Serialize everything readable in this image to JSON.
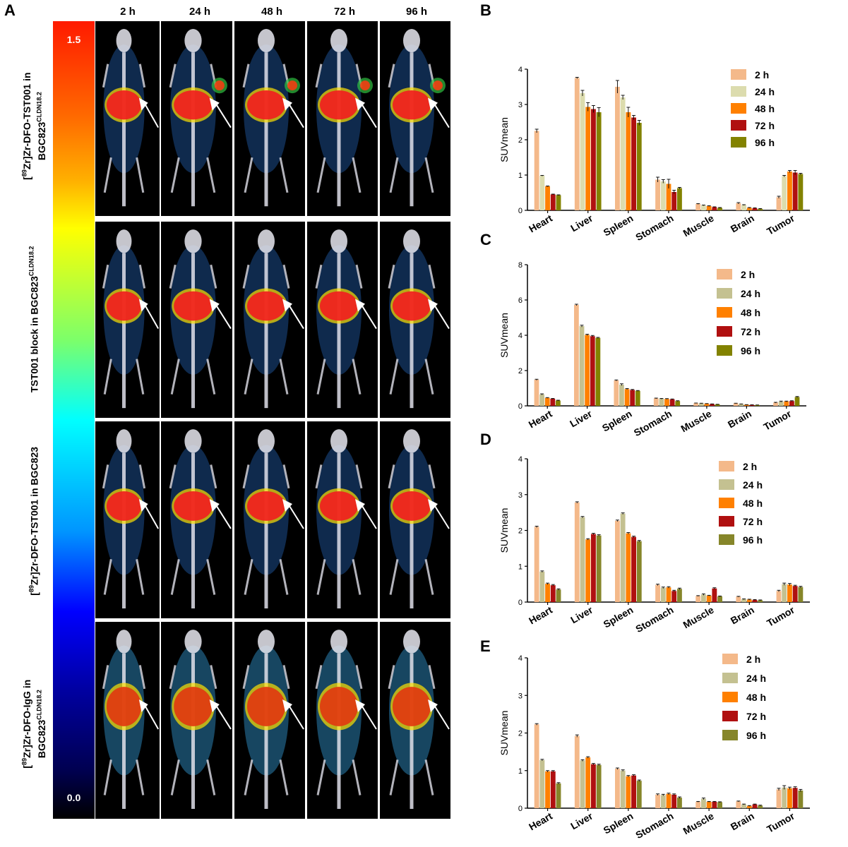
{
  "panels": {
    "a": "A",
    "b": "B",
    "c": "C",
    "d": "D",
    "e": "E"
  },
  "time_points": [
    "2 h",
    "24 h",
    "48 h",
    "72 h",
    "96 h"
  ],
  "colorbar": {
    "max": "1.5",
    "min": "0.0"
  },
  "row_labels": [
    {
      "pre": "[",
      "sup": "89",
      "main": "Zr]Zr-DFO-TST001 in",
      "line2": "BGC823",
      "sup2": "CLDN18.2"
    },
    {
      "pre": "",
      "sup": "",
      "main": "TST001 block in BGC823",
      "line2": "",
      "sup2": "CLDN18.2"
    },
    {
      "pre": "[",
      "sup": "89",
      "main": "Zr]Zr-DFO-TST001 in BGC823",
      "line2": "",
      "sup2": ""
    },
    {
      "pre": "[",
      "sup": "89",
      "main": "Zr]Zr-DFO-IgG in",
      "line2": "BGC823",
      "sup2": "CLDN18.2"
    }
  ],
  "colors": {
    "2 h": "#f4b98a",
    "24 h": "#c9c79a",
    "48 h": "#ff8000",
    "72 h": "#b01010",
    "96 h": "#86862a"
  },
  "chart_data": [
    {
      "panel": "B",
      "type": "bar",
      "ylabel": "SUVmean",
      "ylim": [
        0,
        4
      ],
      "yticks": [
        0,
        1,
        2,
        3,
        4
      ],
      "categories": [
        "Heart",
        "Liver",
        "Spleen",
        "Stomach",
        "Muscle",
        "Brain",
        "Tumor"
      ],
      "series": [
        {
          "name": "2 h",
          "color": "#f4b98a",
          "values": [
            2.25,
            3.75,
            3.5,
            0.87,
            0.18,
            0.2,
            0.37
          ],
          "errors": [
            0.05,
            0.02,
            0.18,
            0.07,
            0.01,
            0.02,
            0.03
          ]
        },
        {
          "name": "24 h",
          "color": "#dcdcae",
          "values": [
            0.98,
            3.32,
            3.2,
            0.82,
            0.14,
            0.15,
            0.97
          ],
          "errors": [
            0.01,
            0.08,
            0.06,
            0.05,
            0.01,
            0.01,
            0.02
          ]
        },
        {
          "name": "48 h",
          "color": "#ff8000",
          "values": [
            0.68,
            2.93,
            2.78,
            0.75,
            0.12,
            0.07,
            1.1
          ],
          "errors": [
            0.01,
            0.12,
            0.14,
            0.13,
            0.01,
            0.01,
            0.03
          ]
        },
        {
          "name": "72 h",
          "color": "#b01010",
          "values": [
            0.45,
            2.87,
            2.63,
            0.52,
            0.09,
            0.06,
            1.07
          ],
          "errors": [
            0.01,
            0.1,
            0.06,
            0.05,
            0.01,
            0.01,
            0.06
          ]
        },
        {
          "name": "96 h",
          "color": "#828200",
          "values": [
            0.43,
            2.78,
            2.48,
            0.63,
            0.07,
            0.04,
            1.03
          ],
          "errors": [
            0.01,
            0.13,
            0.07,
            0.02,
            0.01,
            0.01,
            0.02
          ]
        }
      ]
    },
    {
      "panel": "C",
      "type": "bar",
      "ylabel": "SUVmean",
      "ylim": [
        0,
        8
      ],
      "yticks": [
        0,
        2,
        4,
        6,
        8
      ],
      "categories": [
        "Heart",
        "Liver",
        "Spleen",
        "Stomach",
        "Muscle",
        "Brain",
        "Tumor"
      ],
      "series": [
        {
          "name": "2 h",
          "color": "#f4b98a",
          "values": [
            1.48,
            5.72,
            1.44,
            0.42,
            0.15,
            0.14,
            0.18
          ],
          "errors": [
            0.03,
            0.04,
            0.03,
            0.02,
            0.01,
            0.01,
            0.02
          ]
        },
        {
          "name": "24 h",
          "color": "#c4c191",
          "values": [
            0.65,
            4.52,
            1.2,
            0.4,
            0.14,
            0.1,
            0.24
          ],
          "errors": [
            0.03,
            0.05,
            0.05,
            0.02,
            0.01,
            0.01,
            0.03
          ]
        },
        {
          "name": "48 h",
          "color": "#ff8000",
          "values": [
            0.45,
            4.02,
            0.95,
            0.39,
            0.12,
            0.06,
            0.25
          ],
          "errors": [
            0.02,
            0.04,
            0.03,
            0.02,
            0.01,
            0.01,
            0.02
          ]
        },
        {
          "name": "72 h",
          "color": "#b01010",
          "values": [
            0.4,
            3.95,
            0.9,
            0.37,
            0.1,
            0.05,
            0.27
          ],
          "errors": [
            0.02,
            0.04,
            0.03,
            0.02,
            0.01,
            0.01,
            0.02
          ]
        },
        {
          "name": "96 h",
          "color": "#828200",
          "values": [
            0.3,
            3.85,
            0.85,
            0.27,
            0.08,
            0.04,
            0.5
          ],
          "errors": [
            0.02,
            0.03,
            0.02,
            0.02,
            0.01,
            0.01,
            0.03
          ]
        }
      ]
    },
    {
      "panel": "D",
      "type": "bar",
      "ylabel": "SUVmean",
      "ylim": [
        0,
        4
      ],
      "yticks": [
        0,
        1,
        2,
        3,
        4
      ],
      "categories": [
        "Heart",
        "Liver",
        "Spleen",
        "Stomach",
        "Muscle",
        "Brain",
        "Tumor"
      ],
      "series": [
        {
          "name": "2 h",
          "color": "#f4b98a",
          "values": [
            2.1,
            2.78,
            2.27,
            0.48,
            0.17,
            0.15,
            0.31
          ],
          "errors": [
            0.02,
            0.02,
            0.02,
            0.02,
            0.01,
            0.01,
            0.02
          ]
        },
        {
          "name": "24 h",
          "color": "#c4c191",
          "values": [
            0.85,
            2.37,
            2.47,
            0.4,
            0.21,
            0.08,
            0.5
          ],
          "errors": [
            0.02,
            0.02,
            0.02,
            0.02,
            0.02,
            0.01,
            0.03
          ]
        },
        {
          "name": "48 h",
          "color": "#ff8000",
          "values": [
            0.51,
            1.75,
            1.92,
            0.41,
            0.18,
            0.07,
            0.49
          ],
          "errors": [
            0.02,
            0.02,
            0.02,
            0.02,
            0.01,
            0.01,
            0.03
          ]
        },
        {
          "name": "72 h",
          "color": "#b01010",
          "values": [
            0.47,
            1.9,
            1.82,
            0.31,
            0.38,
            0.06,
            0.45
          ],
          "errors": [
            0.02,
            0.02,
            0.02,
            0.02,
            0.02,
            0.01,
            0.02
          ]
        },
        {
          "name": "96 h",
          "color": "#86862a",
          "values": [
            0.35,
            1.86,
            1.7,
            0.37,
            0.16,
            0.05,
            0.42
          ],
          "errors": [
            0.02,
            0.02,
            0.02,
            0.02,
            0.01,
            0.01,
            0.02
          ]
        }
      ]
    },
    {
      "panel": "E",
      "type": "bar",
      "ylabel": "SUVmean",
      "ylim": [
        0,
        4
      ],
      "yticks": [
        0,
        1,
        2,
        3,
        4
      ],
      "categories": [
        "Heart",
        "Liver",
        "Spleen",
        "Stomach",
        "Muscle",
        "Brain",
        "Tumor"
      ],
      "series": [
        {
          "name": "2 h",
          "color": "#f4b98a",
          "values": [
            2.23,
            1.92,
            1.05,
            0.36,
            0.17,
            0.18,
            0.5
          ],
          "errors": [
            0.02,
            0.03,
            0.02,
            0.02,
            0.01,
            0.01,
            0.03
          ]
        },
        {
          "name": "24 h",
          "color": "#c4c191",
          "values": [
            1.28,
            1.27,
            1.0,
            0.35,
            0.25,
            0.1,
            0.55
          ],
          "errors": [
            0.02,
            0.02,
            0.02,
            0.02,
            0.02,
            0.01,
            0.05
          ]
        },
        {
          "name": "48 h",
          "color": "#ff8000",
          "values": [
            0.98,
            1.35,
            0.85,
            0.38,
            0.17,
            0.06,
            0.53
          ],
          "errors": [
            0.02,
            0.02,
            0.02,
            0.02,
            0.01,
            0.01,
            0.03
          ]
        },
        {
          "name": "72 h",
          "color": "#b01010",
          "values": [
            0.98,
            1.17,
            0.87,
            0.36,
            0.17,
            0.1,
            0.54
          ],
          "errors": [
            0.02,
            0.02,
            0.02,
            0.02,
            0.01,
            0.01,
            0.03
          ]
        },
        {
          "name": "96 h",
          "color": "#86862a",
          "values": [
            0.66,
            1.15,
            0.73,
            0.28,
            0.16,
            0.07,
            0.47
          ],
          "errors": [
            0.02,
            0.02,
            0.02,
            0.02,
            0.01,
            0.01,
            0.03
          ]
        }
      ]
    }
  ]
}
